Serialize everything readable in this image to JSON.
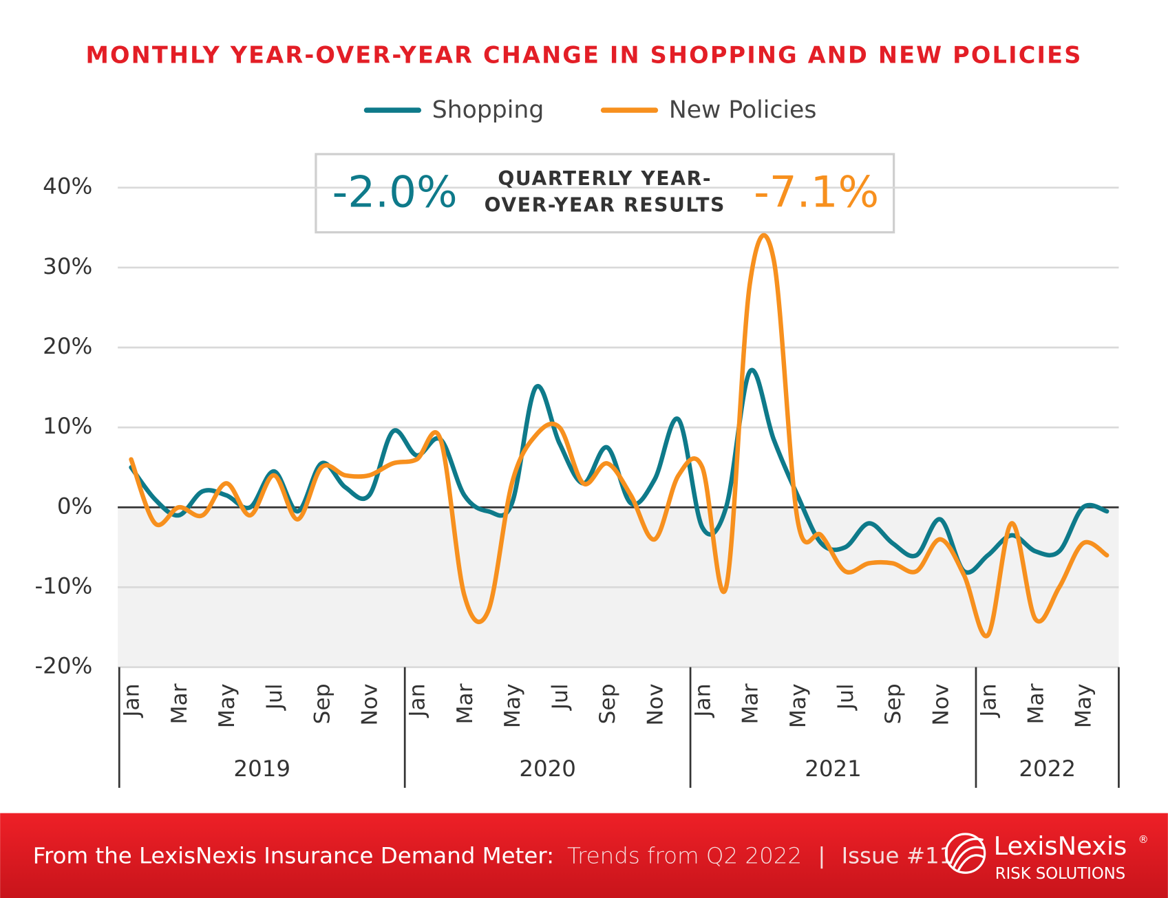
{
  "chart_data": {
    "type": "line",
    "title": "MONTHLY YEAR-OVER-YEAR CHANGE IN SHOPPING AND NEW POLICIES",
    "categories": [
      "Jan",
      null,
      "Mar",
      null,
      "May",
      null,
      "Jul",
      null,
      "Sep",
      null,
      "Nov",
      null,
      "Jan",
      null,
      "Mar",
      null,
      "May",
      null,
      "Jul",
      null,
      "Sep",
      null,
      "Nov",
      null,
      "Jan",
      null,
      "Mar",
      null,
      "May",
      null,
      "Jul",
      null,
      "Sep",
      null,
      "Nov",
      null,
      "Jan",
      null,
      "Mar",
      null,
      "May",
      null
    ],
    "years": [
      "2019",
      "2020",
      "2021",
      "2022"
    ],
    "series": [
      {
        "name": "Shopping",
        "color": "#0e7a8a",
        "values": [
          5,
          1,
          -1,
          2,
          1.5,
          0,
          4.5,
          -0.5,
          5.5,
          2.5,
          1.5,
          9.5,
          6.5,
          8.5,
          1.5,
          -0.5,
          0.5,
          15,
          8,
          3,
          7.5,
          0.5,
          3.5,
          11,
          -2.5,
          0,
          17,
          8.5,
          1.5,
          -4.5,
          -5,
          -2,
          -4.5,
          -6,
          -1.5,
          -8,
          -6,
          -3.5,
          -5.5,
          -5.5,
          0,
          -0.5
        ]
      },
      {
        "name": "New Policies",
        "color": "#f7901e",
        "values": [
          6,
          -2,
          0,
          -1,
          3,
          -1,
          4,
          -1.5,
          5,
          4,
          4,
          5.5,
          6,
          8.5,
          -11,
          -13,
          3,
          9,
          10,
          3,
          5.5,
          1.5,
          -4,
          4,
          5,
          -10,
          28,
          31,
          -1.5,
          -3.5,
          -8,
          -7,
          -7,
          -8,
          -4,
          -8.5,
          -16,
          -2,
          -14,
          -10,
          -4.5,
          -6
        ]
      }
    ],
    "ylim": [
      -20,
      40
    ],
    "yticks": [
      {
        "value": -20,
        "label": "-20%"
      },
      {
        "value": -10,
        "label": "-10%"
      },
      {
        "value": 0,
        "label": "0%"
      },
      {
        "value": 10,
        "label": "10%"
      },
      {
        "value": 20,
        "label": "20%"
      },
      {
        "value": 30,
        "label": "30%"
      },
      {
        "value": 40,
        "label": "40%"
      }
    ],
    "grid": true,
    "legend": "top",
    "annotation": {
      "shopping": "-2.0%",
      "label": [
        "QUARTERLY YEAR-",
        "OVER-YEAR RESULTS"
      ],
      "new_policies": "-7.1%"
    }
  },
  "footer": {
    "source": "From the LexisNexis Insurance Demand Meter:",
    "subtitle": "Trends from Q2 2022",
    "separator": "|",
    "issue": "Issue #11"
  },
  "logo": {
    "name": "LexisNexis",
    "registered": "®",
    "tagline": "RISK SOLUTIONS"
  }
}
